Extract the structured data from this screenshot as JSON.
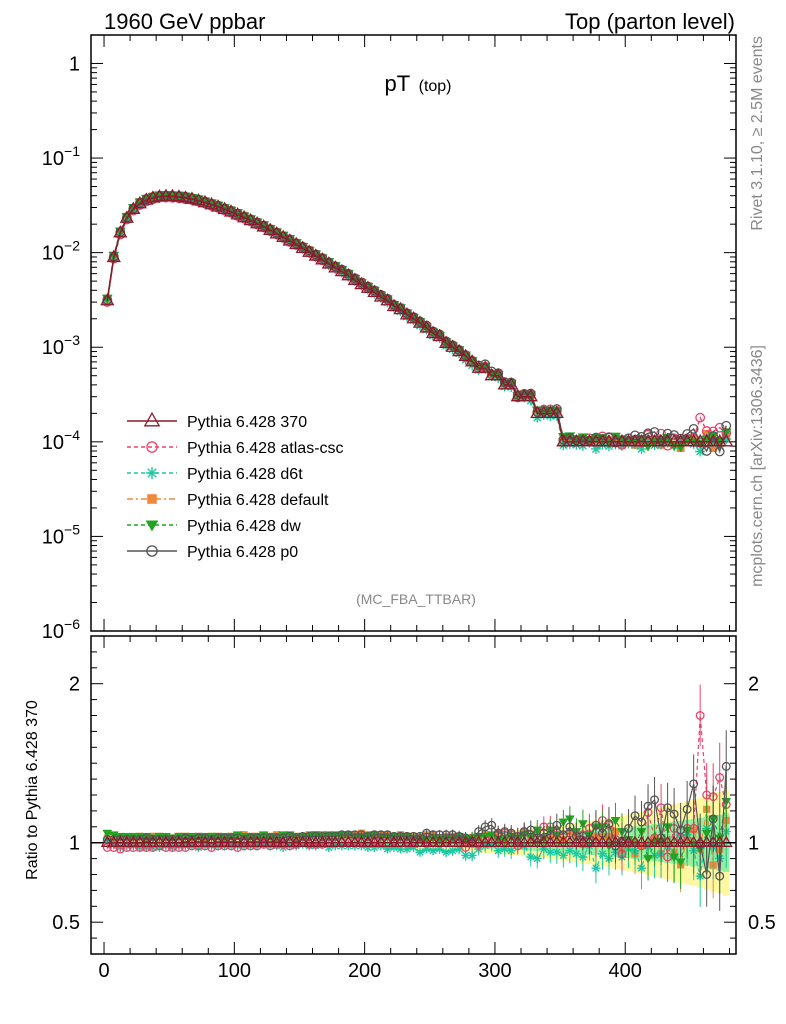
{
  "header": {
    "left": "1960 GeV ppbar",
    "right": "Top (parton level)"
  },
  "plot_title": {
    "main": "pT",
    "sub": "(top)"
  },
  "watermark": "(MC_FBA_TTBAR)",
  "side_text": {
    "rivet": "Rivet 3.1.10, ≥ 2.5M events",
    "mcplots": "mcplots.cern.ch [arXiv:1306.3436]"
  },
  "ratio_ylabel": "Ratio to Pythia 6.428 370",
  "colors": {
    "370": "#8b1a2b",
    "atlas": "#e8436a",
    "d6t": "#1ec8a0",
    "default": "#f0883a",
    "dw": "#22a322",
    "p0": "#555555",
    "band_yellow": "#fff8a0",
    "band_green": "#90f0a0"
  },
  "chart_data": {
    "type": "line",
    "xlim": [
      -10,
      485
    ],
    "main_ylim": [
      1e-06,
      2
    ],
    "main_ylog": true,
    "ratio_ylim": [
      0.3,
      2.3
    ],
    "x_ticks": [
      0,
      100,
      200,
      300,
      400
    ],
    "main_yticks": [
      {
        "v": 1,
        "base": "1",
        "exp": ""
      },
      {
        "v": 0.1,
        "base": "10",
        "exp": "−1"
      },
      {
        "v": 0.01,
        "base": "10",
        "exp": "−2"
      },
      {
        "v": 0.001,
        "base": "10",
        "exp": "−3"
      },
      {
        "v": 0.0001,
        "base": "10",
        "exp": "−4"
      },
      {
        "v": 1e-05,
        "base": "10",
        "exp": "−5"
      },
      {
        "v": 1e-06,
        "base": "10",
        "exp": "−6"
      }
    ],
    "ratio_yticks": [
      {
        "v": 2,
        "label": "2"
      },
      {
        "v": 1,
        "label": "1"
      },
      {
        "v": 0.5,
        "label": "0.5"
      }
    ],
    "x": [
      2.5,
      7.5,
      12.5,
      17.5,
      22.5,
      27.5,
      32.5,
      37.5,
      42.5,
      47.5,
      52.5,
      57.5,
      62.5,
      67.5,
      72.5,
      77.5,
      82.5,
      87.5,
      92.5,
      97.5,
      102.5,
      107.5,
      112.5,
      117.5,
      122.5,
      127.5,
      132.5,
      137.5,
      142.5,
      147.5,
      152.5,
      157.5,
      162.5,
      167.5,
      172.5,
      177.5,
      182.5,
      187.5,
      192.5,
      197.5,
      202.5,
      207.5,
      212.5,
      217.5,
      222.5,
      227.5,
      232.5,
      237.5,
      242.5,
      247.5,
      252.5,
      257.5,
      262.5,
      267.5,
      272.5,
      277.5,
      282.5,
      287.5,
      292.5,
      297.5,
      302.5,
      307.5,
      312.5,
      317.5,
      322.5,
      327.5,
      332.5,
      337.5,
      342.5,
      347.5,
      352.5,
      357.5,
      362.5,
      367.5,
      372.5,
      377.5,
      382.5,
      387.5,
      392.5,
      397.5,
      402.5,
      407.5,
      412.5,
      417.5,
      422.5,
      427.5,
      432.5,
      437.5,
      442.5,
      447.5,
      452.5,
      457.5,
      462.5,
      467.5,
      472.5,
      477.5
    ],
    "reference": {
      "name": "Pythia 6.428 370",
      "values": [
        0.0031,
        0.0089,
        0.0162,
        0.0231,
        0.0287,
        0.0329,
        0.0359,
        0.0378,
        0.0389,
        0.0393,
        0.0392,
        0.0387,
        0.0378,
        0.0367,
        0.0353,
        0.0337,
        0.0321,
        0.0304,
        0.0286,
        0.0269,
        0.0251,
        0.0234,
        0.0218,
        0.0202,
        0.0187,
        0.0172,
        0.0158,
        0.0145,
        0.0133,
        0.0122,
        0.0111,
        0.0101,
        0.0092,
        0.0084,
        0.0076,
        0.0069,
        0.0063,
        0.0057,
        0.0051,
        0.0046,
        0.0042,
        0.0038,
        0.0034,
        0.0031,
        0.0027,
        0.0025,
        0.0022,
        0.002,
        0.0018,
        0.0016,
        0.0014,
        0.0013,
        0.0011,
        0.001,
        0.0009,
        0.0008,
        0.0007,
        0.0006,
        0.0006,
        0.0005,
        0.0005,
        0.0004,
        0.0004,
        0.0003,
        0.0003,
        0.0003,
        0.0002,
        0.0002,
        0.0002,
        0.0002,
        0.0001,
        0.0001,
        0.0001,
        0.0001,
        0.0001,
        0.0001,
        0.0001,
        0.0001,
        0.0001,
        0.0001,
        0.0001,
        0.0001,
        0.0001,
        0.0001,
        0.0001,
        0.0001,
        0.0001,
        0.0001,
        0.0001,
        0.0001,
        0.0001,
        0.0001,
        0.0001,
        0.0001,
        0.0001,
        0.0001
      ]
    },
    "series": [
      {
        "name": "Pythia 6.428 370",
        "key": "370",
        "marker": "triangle-open",
        "dash": "",
        "ratio": [
          1,
          1,
          1,
          1,
          1,
          1,
          1,
          1,
          1,
          1,
          1,
          1,
          1,
          1,
          1,
          1,
          1,
          1,
          1,
          1,
          1,
          1,
          1,
          1,
          1,
          1,
          1,
          1,
          1,
          1,
          1,
          1,
          1,
          1,
          1,
          1,
          1,
          1,
          1,
          1,
          1,
          1,
          1,
          1,
          1,
          1,
          1,
          1,
          1,
          1,
          1,
          1,
          1,
          1,
          1,
          1,
          1,
          1,
          1,
          1,
          1,
          1,
          1,
          1,
          1,
          1,
          1,
          1,
          1,
          1,
          1,
          1,
          1,
          1,
          1,
          1,
          1,
          1,
          1,
          1,
          1,
          1,
          1,
          1,
          1,
          1,
          1,
          1,
          1,
          1,
          1,
          1,
          1,
          1,
          1,
          1
        ]
      },
      {
        "name": "Pythia 6.428 atlas-csc",
        "key": "atlas",
        "marker": "circle-open",
        "dash": "4,3",
        "ratio": [
          0.97,
          0.97,
          0.96,
          0.97,
          0.97,
          0.97,
          0.97,
          0.97,
          0.98,
          0.97,
          0.97,
          0.97,
          0.97,
          0.98,
          0.98,
          0.98,
          0.97,
          0.98,
          0.98,
          0.98,
          0.97,
          0.98,
          0.98,
          0.98,
          0.99,
          0.98,
          0.99,
          0.99,
          0.98,
          0.99,
          1.0,
          0.99,
          0.99,
          0.99,
          1.0,
          1.0,
          1.0,
          1.0,
          1.01,
          1.01,
          1.0,
          1.01,
          1.01,
          1.02,
          1.01,
          1.02,
          1.0,
          1.01,
          1.03,
          1.0,
          1.0,
          1.02,
          1.0,
          1.03,
          1.02,
          0.97,
          1.03,
          0.99,
          1.03,
          1.04,
          1.05,
          1.06,
          1.05,
          0.98,
          1.07,
          1.05,
          1.03,
          1.1,
          1.1,
          1.06,
          1.05,
          1.06,
          1.04,
          1.05,
          1.09,
          1.0,
          1.14,
          1.11,
          1.02,
          0.93,
          1.01,
          1.0,
          0.98,
          1.19,
          1.03,
          1.22,
          0.91,
          1.09,
          1.03,
          1.09,
          1.09,
          1.8,
          1.3,
          1.29,
          1.41,
          1.24
        ]
      },
      {
        "name": "Pythia 6.428 d6t",
        "key": "d6t",
        "marker": "star",
        "dash": "4,3",
        "ratio": [
          1.01,
          0.99,
          0.97,
          0.98,
          0.98,
          0.97,
          0.97,
          0.97,
          0.97,
          0.98,
          0.97,
          0.98,
          0.98,
          0.98,
          0.97,
          0.98,
          0.98,
          0.98,
          0.98,
          0.98,
          0.98,
          0.98,
          0.98,
          0.98,
          0.99,
          0.98,
          0.98,
          0.97,
          0.98,
          0.98,
          0.99,
          0.98,
          0.98,
          0.99,
          0.97,
          0.98,
          0.98,
          0.98,
          0.98,
          0.98,
          0.97,
          0.97,
          0.98,
          0.96,
          0.97,
          0.96,
          0.96,
          0.97,
          0.94,
          0.96,
          0.95,
          0.96,
          0.94,
          0.95,
          0.96,
          0.92,
          0.92,
          0.96,
          0.98,
          0.99,
          0.95,
          0.96,
          0.95,
          0.99,
          0.98,
          0.91,
          0.9,
          0.96,
          0.94,
          0.94,
          0.92,
          0.95,
          0.93,
          0.91,
          0.98,
          0.84,
          0.93,
          0.9,
          0.94,
          0.91,
          0.96,
          0.95,
          0.84,
          0.98,
          0.92,
          0.93,
          0.98,
          0.91,
          1.05,
          1.05,
          0.95,
          0.79,
          1.09,
          0.98,
          0.9,
          1.07
        ]
      },
      {
        "name": "Pythia 6.428 default",
        "key": "default",
        "marker": "square",
        "dash": "6,3,2,3",
        "ratio": [
          1.03,
          1.02,
          1.03,
          1.03,
          1.03,
          1.04,
          1.03,
          1.04,
          1.04,
          1.03,
          1.03,
          1.04,
          1.04,
          1.03,
          1.04,
          1.03,
          1.04,
          1.04,
          1.03,
          1.04,
          1.04,
          1.05,
          1.04,
          1.04,
          1.04,
          1.04,
          1.05,
          1.04,
          1.04,
          1.04,
          1.04,
          1.05,
          1.05,
          1.05,
          1.04,
          1.04,
          1.04,
          1.05,
          1.05,
          1.06,
          1.05,
          1.04,
          1.05,
          1.05,
          1.04,
          1.05,
          1.04,
          1.04,
          1.03,
          1.05,
          1.05,
          1.03,
          1.04,
          1.04,
          1.03,
          1.01,
          0.99,
          1.03,
          1.05,
          1.04,
          1.06,
          1.01,
          1.04,
          1.04,
          1.07,
          1.03,
          1.06,
          1.03,
          1.04,
          1.03,
          1.02,
          1.07,
          1.05,
          0.99,
          1.04,
          1.04,
          1.04,
          1.04,
          1.07,
          0.95,
          1.01,
          0.93,
          0.98,
          0.99,
          1.03,
          0.93,
          0.99,
          0.94,
          0.86,
          1.03,
          1.08,
          0.96,
          1.21,
          0.86,
          0.96,
          1.14
        ]
      },
      {
        "name": "Pythia 6.428 dw",
        "key": "dw",
        "marker": "triangle-down",
        "dash": "4,3",
        "ratio": [
          1.06,
          1.05,
          1.04,
          1.04,
          1.04,
          1.04,
          1.04,
          1.03,
          1.04,
          1.04,
          1.03,
          1.04,
          1.04,
          1.04,
          1.04,
          1.04,
          1.04,
          1.04,
          1.04,
          1.04,
          1.05,
          1.04,
          1.04,
          1.04,
          1.05,
          1.04,
          1.04,
          1.05,
          1.05,
          1.04,
          1.04,
          1.04,
          1.05,
          1.04,
          1.05,
          1.05,
          1.05,
          1.05,
          1.04,
          1.04,
          1.04,
          1.05,
          1.04,
          1.04,
          1.04,
          1.04,
          1.04,
          1.03,
          1.03,
          1.02,
          1.03,
          1.02,
          1.03,
          1.03,
          1.04,
          1.03,
          1.03,
          1.04,
          1.04,
          1.05,
          1.02,
          1.02,
          1.04,
          1.03,
          1.05,
          1.04,
          1.08,
          1.03,
          1.08,
          1.05,
          1.13,
          1.15,
          1.07,
          1.12,
          1.05,
          1.1,
          1.1,
          0.98,
          1.14,
          1.07,
          1.02,
          0.99,
          1.07,
          0.9,
          1.0,
          1.01,
          1.1,
          0.91,
          0.88,
          1.08,
          0.99,
          0.96,
          1.06,
          1.15,
          1.03,
          1.26
        ]
      },
      {
        "name": "Pythia 6.428 p0",
        "key": "p0",
        "marker": "circle-open",
        "dash": "",
        "ratio": [
          1.02,
          1.02,
          1.02,
          1.02,
          1.02,
          1.02,
          1.03,
          1.02,
          1.02,
          1.02,
          1.02,
          1.02,
          1.03,
          1.02,
          1.03,
          1.03,
          1.02,
          1.03,
          1.03,
          1.03,
          1.03,
          1.02,
          1.03,
          1.03,
          1.03,
          1.03,
          1.03,
          1.03,
          1.04,
          1.03,
          1.04,
          1.04,
          1.04,
          1.04,
          1.04,
          1.04,
          1.05,
          1.05,
          1.05,
          1.05,
          1.04,
          1.05,
          1.05,
          1.05,
          1.04,
          1.04,
          1.04,
          1.04,
          1.04,
          1.06,
          1.05,
          1.05,
          1.05,
          1.05,
          1.04,
          1.03,
          1.01,
          1.07,
          1.1,
          1.11,
          1.06,
          1.07,
          1.06,
          1.04,
          1.07,
          1.08,
          1.03,
          1.06,
          1.05,
          1.11,
          1.05,
          1.1,
          1.04,
          1.04,
          1.02,
          1.11,
          1.06,
          1.12,
          0.98,
          1.01,
          1.09,
          1.17,
          1.13,
          1.23,
          1.27,
          1.03,
          1.22,
          1.18,
          1.08,
          1.21,
          1.37,
          0.99,
          0.8,
          1.15,
          0.79,
          1.48
        ]
      }
    ]
  }
}
